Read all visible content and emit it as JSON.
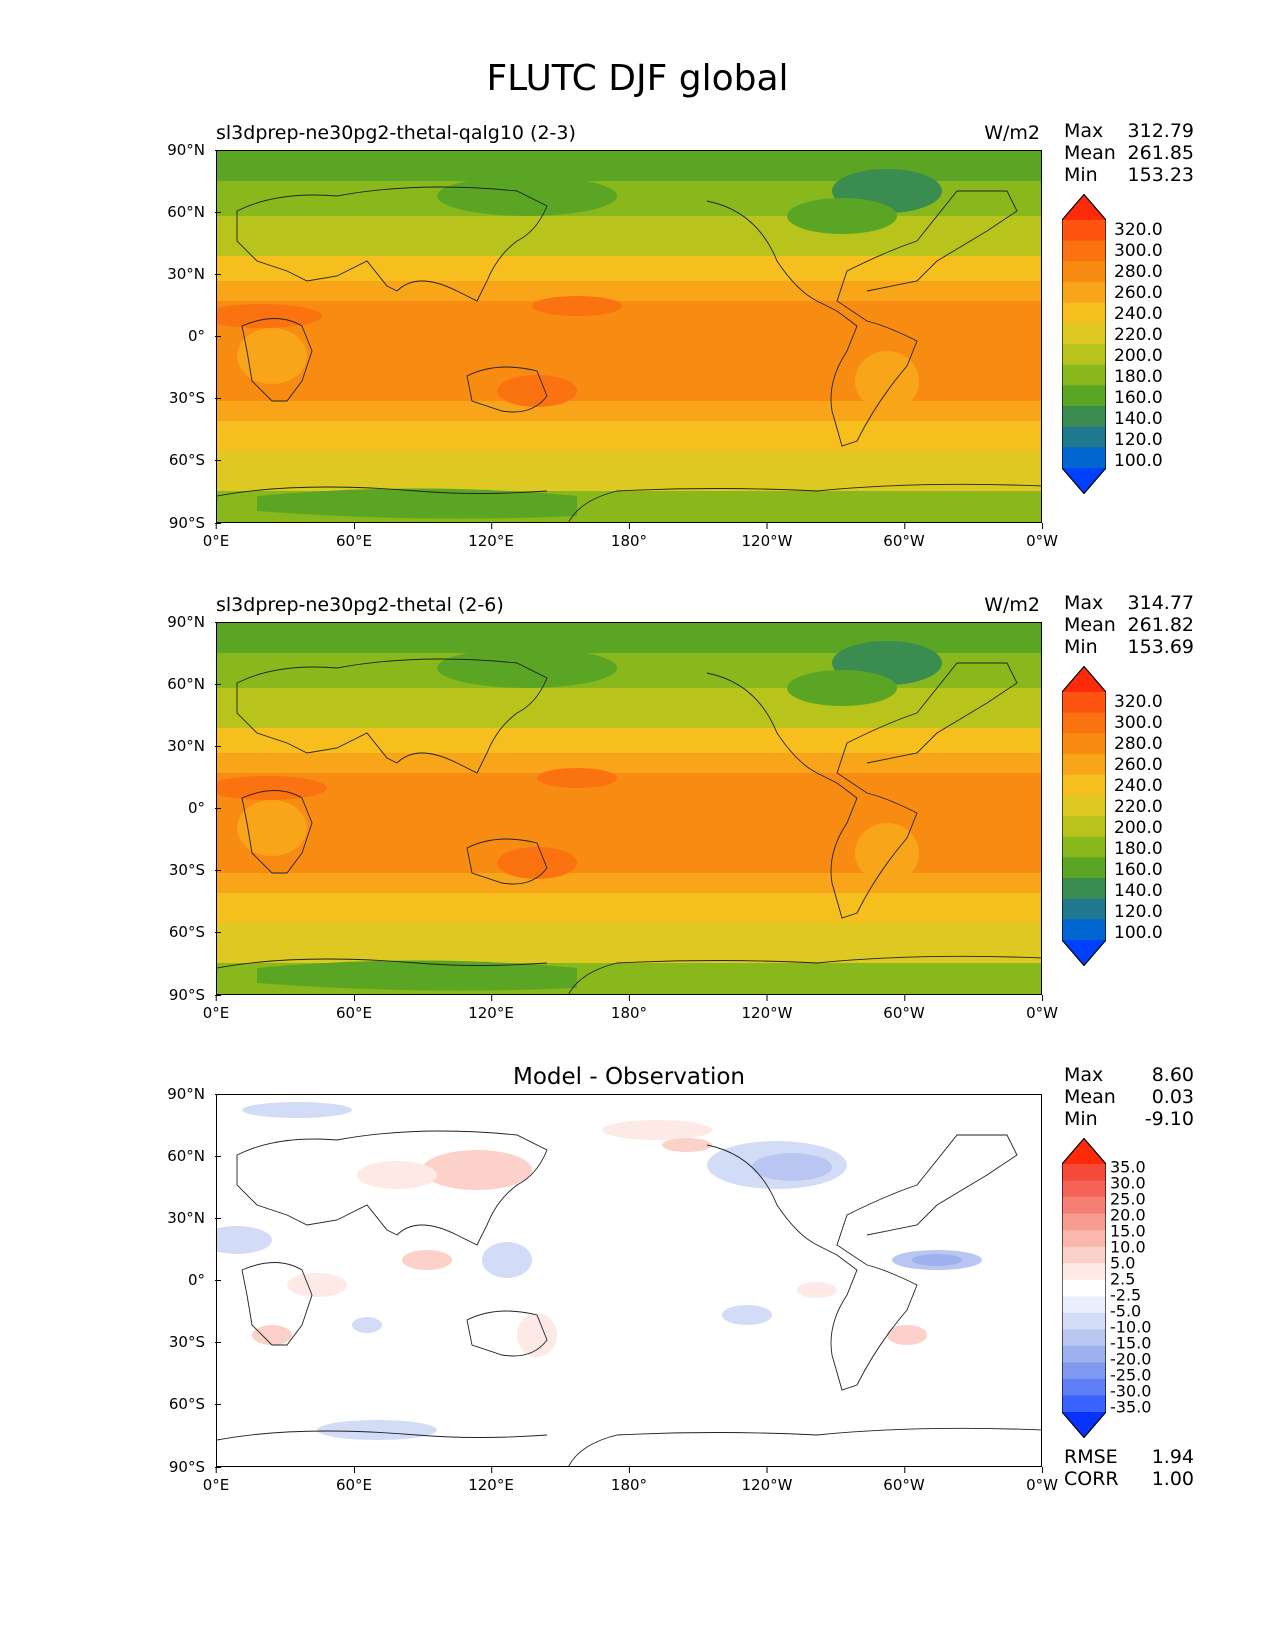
{
  "title": "FLUTC DJF global",
  "x_ticks": [
    "0°E",
    "60°E",
    "120°E",
    "180°",
    "120°W",
    "60°W",
    "0°W"
  ],
  "y_ticks": [
    "90°N",
    "60°N",
    "30°N",
    "0°",
    "30°S",
    "60°S",
    "90°S"
  ],
  "panels": [
    {
      "title_left": "sl3dprep-ne30pg2-thetal-qalg10 (2-3)",
      "title_right": "W/m2",
      "stats": [
        {
          "label": "Max",
          "value": "312.79"
        },
        {
          "label": "Mean",
          "value": "261.85"
        },
        {
          "label": "Min",
          "value": "153.23"
        }
      ],
      "colorbar_labels": [
        "320.0",
        "300.0",
        "280.0",
        "260.0",
        "240.0",
        "220.0",
        "200.0",
        "180.0",
        "160.0",
        "140.0",
        "120.0",
        "100.0"
      ]
    },
    {
      "title_left": "sl3dprep-ne30pg2-thetal (2-6)",
      "title_right": "W/m2",
      "stats": [
        {
          "label": "Max",
          "value": "314.77"
        },
        {
          "label": "Mean",
          "value": "261.82"
        },
        {
          "label": "Min",
          "value": "153.69"
        }
      ],
      "colorbar_labels": [
        "320.0",
        "300.0",
        "280.0",
        "260.0",
        "240.0",
        "220.0",
        "200.0",
        "180.0",
        "160.0",
        "140.0",
        "120.0",
        "100.0"
      ]
    },
    {
      "title_center": "Model - Observation",
      "stats": [
        {
          "label": "Max",
          "value": "8.60"
        },
        {
          "label": "Mean",
          "value": "0.03"
        },
        {
          "label": "Min",
          "value": "-9.10"
        }
      ],
      "colorbar_labels": [
        "35.0",
        "30.0",
        "25.0",
        "20.0",
        "15.0",
        "10.0",
        "5.0",
        "2.5",
        "-2.5",
        "-5.0",
        "-10.0",
        "-15.0",
        "-20.0",
        "-25.0",
        "-30.0",
        "-35.0"
      ],
      "metrics": [
        {
          "label": "RMSE",
          "value": "1.94"
        },
        {
          "label": "CORR",
          "value": "1.00"
        }
      ]
    }
  ],
  "colors": {
    "abs_scale": [
      "#0041ff",
      "#0066d0",
      "#20788f",
      "#3a8c50",
      "#5aa624",
      "#88b81b",
      "#b8c31c",
      "#ddc921",
      "#f6bf1d",
      "#f8a51a",
      "#f88c12",
      "#fb7210",
      "#fd5510",
      "#ff2a0a"
    ],
    "diff_scale": [
      "#0a32ff",
      "#3a62ff",
      "#5e7ff7",
      "#7f99f0",
      "#9eb0ee",
      "#b9c6f2",
      "#d3dcf6",
      "#ebeffb",
      "#ffffff",
      "#fde9e6",
      "#fbd1ca",
      "#f9b7ae",
      "#f89c92",
      "#f67f74",
      "#f46356",
      "#f34a3a",
      "#ff2a0a"
    ]
  }
}
